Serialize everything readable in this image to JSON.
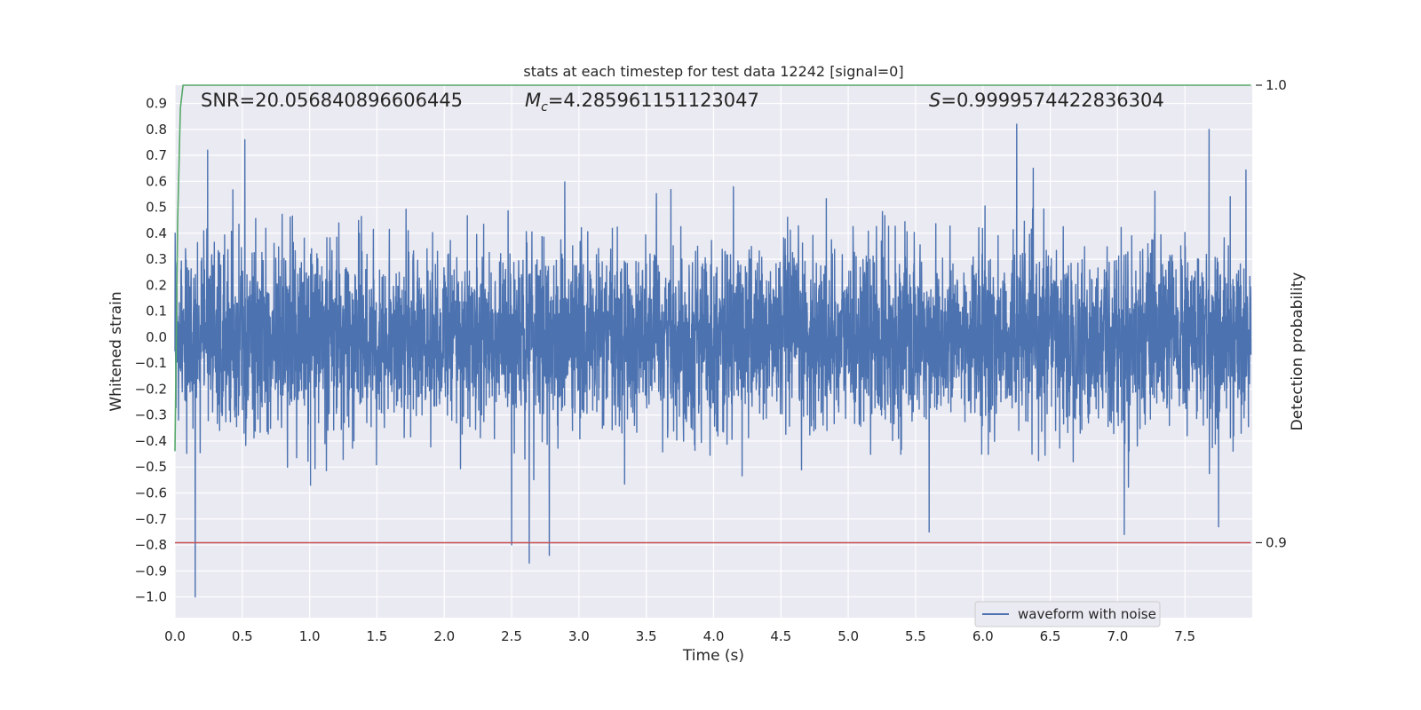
{
  "chart_data": {
    "type": "line",
    "title": "stats at each timestep for test data 12242 [signal=0]",
    "xlabel": "Time (s)",
    "ylabel": "Whitened strain",
    "ylabel_right": "Detection probability",
    "xlim": [
      0.0,
      8.0
    ],
    "ylim": [
      -1.08,
      0.97
    ],
    "ylim_right": [
      0.8836,
      1.0
    ],
    "x_ticks": [
      "0.0",
      "0.5",
      "1.0",
      "1.5",
      "2.0",
      "2.5",
      "3.0",
      "3.5",
      "4.0",
      "4.5",
      "5.0",
      "5.5",
      "6.0",
      "6.5",
      "7.0",
      "7.5"
    ],
    "y_ticks": [
      "0.9",
      "0.8",
      "0.7",
      "0.6",
      "0.5",
      "0.4",
      "0.3",
      "0.2",
      "0.1",
      "0.0",
      "-0.1",
      "-0.2",
      "-0.3",
      "-0.4",
      "-0.5",
      "-0.6",
      "-0.7",
      "-0.8",
      "-0.9",
      "-1.0"
    ],
    "y_ticks_right": [
      "1.0",
      "0.9"
    ],
    "grid": true,
    "legend_position": "bottom-right",
    "annotations": {
      "snr": "SNR=20.056840896606445",
      "mc": "=4.285961151123047",
      "mc_symbol": "M",
      "mc_sub": "c",
      "s": "=0.9999574422836304",
      "s_symbol": "S"
    },
    "series": [
      {
        "name": "waveform with noise",
        "color": "#4c72b0",
        "axis": "left",
        "description_stats": {
          "t_start": 0.0,
          "t_end": 7.99,
          "approx_min": -1.0,
          "approx_max": 0.82
        },
        "peaks": [
          {
            "x": 0.15,
            "y": -1.0
          },
          {
            "x": 0.52,
            "y": 0.76
          },
          {
            "x": 2.63,
            "y": -0.87
          },
          {
            "x": 2.78,
            "y": -0.84
          },
          {
            "x": 2.5,
            "y": -0.8
          },
          {
            "x": 6.25,
            "y": 0.82
          },
          {
            "x": 7.68,
            "y": 0.8
          },
          {
            "x": 5.6,
            "y": -0.75
          },
          {
            "x": 7.75,
            "y": -0.73
          },
          {
            "x": 7.05,
            "y": -0.76
          }
        ]
      },
      {
        "name": "",
        "color": "#55a868",
        "axis": "right",
        "x": [
          0.0,
          0.02,
          0.04,
          0.06,
          0.08,
          7.99
        ],
        "y": [
          0.92,
          0.97,
          0.995,
          1.0,
          1.0,
          1.0
        ]
      },
      {
        "name": "",
        "color": "#c44e52",
        "axis": "right",
        "x": [
          0.0,
          7.99
        ],
        "y": [
          0.9,
          0.9
        ]
      }
    ]
  }
}
